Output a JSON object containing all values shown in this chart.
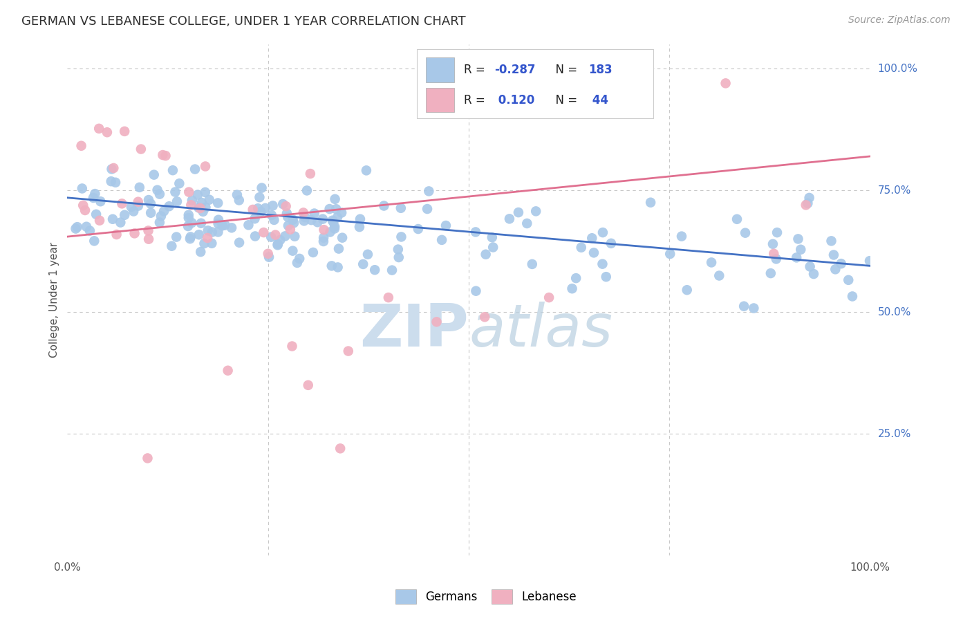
{
  "title": "GERMAN VS LEBANESE COLLEGE, UNDER 1 YEAR CORRELATION CHART",
  "source": "Source: ZipAtlas.com",
  "ylabel": "College, Under 1 year",
  "ytick_labels": [
    "100.0%",
    "75.0%",
    "50.0%",
    "25.0%"
  ],
  "ytick_positions": [
    1.0,
    0.75,
    0.5,
    0.25
  ],
  "xlim": [
    0.0,
    1.0
  ],
  "ylim": [
    0.0,
    1.05
  ],
  "blue_color": "#a8c8e8",
  "pink_color": "#f0b0c0",
  "blue_line_color": "#4472c4",
  "pink_line_color": "#e07090",
  "title_color": "#303030",
  "axis_label_color": "#505050",
  "tick_label_color_right": "#4472c4",
  "watermark_color": "#ccdded",
  "background_color": "#ffffff",
  "grid_color": "#c8c8c8",
  "blue_trend_x": [
    0.0,
    1.0
  ],
  "blue_trend_y": [
    0.735,
    0.595
  ],
  "pink_trend_x": [
    0.0,
    1.0
  ],
  "pink_trend_y": [
    0.655,
    0.82
  ]
}
